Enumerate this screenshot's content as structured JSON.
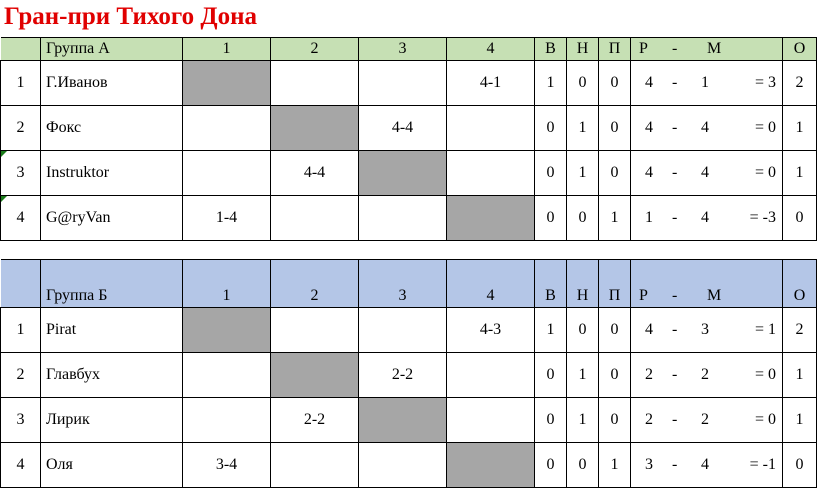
{
  "title": "Гран-при Тихого Дона",
  "header_cols": {
    "c1": "1",
    "c2": "2",
    "c3": "3",
    "c4": "4",
    "w": "В",
    "d": "Н",
    "l": "П",
    "r": "Р",
    "dash": "-",
    "m": "М",
    "pts": "О"
  },
  "groups": [
    {
      "name": "Группа А",
      "header_color": "#c6e0b4",
      "rows": [
        {
          "n": "1",
          "player": "Г.Иванов",
          "c1": "",
          "c2": "",
          "c3": "",
          "c4": "4-1",
          "w": "1",
          "d": "0",
          "l": "0",
          "gf": "4",
          "ga": "1",
          "diff": "= 3",
          "pts": "2"
        },
        {
          "n": "2",
          "player": "Фокс",
          "c1": "",
          "c2": "",
          "c3": "4-4",
          "c4": "",
          "w": "0",
          "d": "1",
          "l": "0",
          "gf": "4",
          "ga": "4",
          "diff": "= 0",
          "pts": "1"
        },
        {
          "n": "3",
          "player": "Instruktor",
          "c1": "",
          "c2": "4-4",
          "c3": "",
          "c4": "",
          "w": "0",
          "d": "1",
          "l": "0",
          "gf": "4",
          "ga": "4",
          "diff": "= 0",
          "pts": "1"
        },
        {
          "n": "4",
          "player": "G@ryVan",
          "c1": "1-4",
          "c2": "",
          "c3": "",
          "c4": "",
          "w": "0",
          "d": "0",
          "l": "1",
          "gf": "1",
          "ga": "4",
          "diff": "= -3",
          "pts": "0"
        }
      ]
    },
    {
      "name": "Группа Б",
      "header_color": "#b4c6e7",
      "rows": [
        {
          "n": "1",
          "player": "Pirat",
          "c1": "",
          "c2": "",
          "c3": "",
          "c4": "4-3",
          "w": "1",
          "d": "0",
          "l": "0",
          "gf": "4",
          "ga": "3",
          "diff": "= 1",
          "pts": "2"
        },
        {
          "n": "2",
          "player": "Главбух",
          "c1": "",
          "c2": "",
          "c3": "2-2",
          "c4": "",
          "w": "0",
          "d": "1",
          "l": "0",
          "gf": "2",
          "ga": "2",
          "diff": "= 0",
          "pts": "1"
        },
        {
          "n": "3",
          "player": "Лирик",
          "c1": "",
          "c2": "2-2",
          "c3": "",
          "c4": "",
          "w": "0",
          "d": "1",
          "l": "0",
          "gf": "2",
          "ga": "2",
          "diff": "= 0",
          "pts": "1"
        },
        {
          "n": "4",
          "player": "Оля",
          "c1": "3-4",
          "c2": "",
          "c3": "",
          "c4": "",
          "w": "0",
          "d": "0",
          "l": "1",
          "gf": "3",
          "ga": "4",
          "diff": "= -1",
          "pts": "0"
        }
      ]
    }
  ]
}
